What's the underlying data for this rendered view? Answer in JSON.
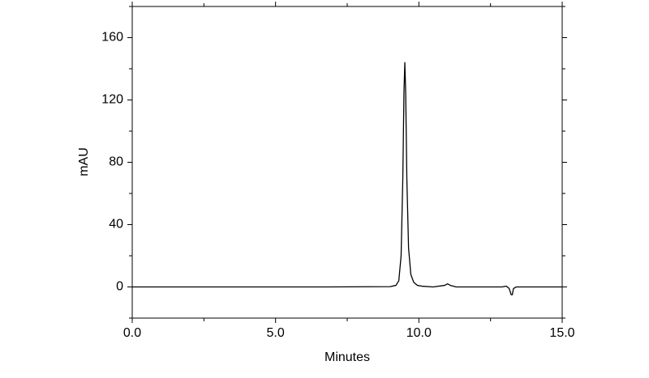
{
  "chart_data": {
    "type": "line",
    "xlabel": "Minutes",
    "ylabel": "mAU",
    "x": [
      0,
      6.8,
      9.0,
      9.2,
      9.3,
      9.38,
      9.44,
      9.48,
      9.51,
      9.54,
      9.58,
      9.64,
      9.72,
      9.82,
      9.95,
      10.1,
      10.5,
      10.9,
      11.0,
      11.1,
      11.3,
      12.9,
      13.05,
      13.15,
      13.22,
      13.26,
      13.3,
      13.4,
      15
    ],
    "series": [
      {
        "color": "#000000",
        "values": [
          0,
          0,
          0.2,
          1,
          4,
          20,
          70,
          125,
          144,
          125,
          70,
          25,
          8,
          3,
          1,
          0.5,
          0,
          1,
          2,
          1,
          0,
          0,
          0.5,
          -1,
          -5,
          -5,
          -1,
          0,
          0
        ]
      }
    ],
    "xlim": [
      0,
      15
    ],
    "ylim": [
      -20,
      180
    ],
    "xticks": [
      {
        "value": 0,
        "label": "0.0"
      },
      {
        "value": 5,
        "label": "5.0"
      },
      {
        "value": 10,
        "label": "10.0"
      },
      {
        "value": 15,
        "label": "15.0"
      }
    ],
    "xminorticks": [
      2.5,
      7.5,
      12.5
    ],
    "yticks": [
      0,
      40,
      80,
      120,
      160
    ],
    "yminorticks": [
      -20,
      20,
      60,
      100,
      140,
      180
    ],
    "grid": false
  }
}
